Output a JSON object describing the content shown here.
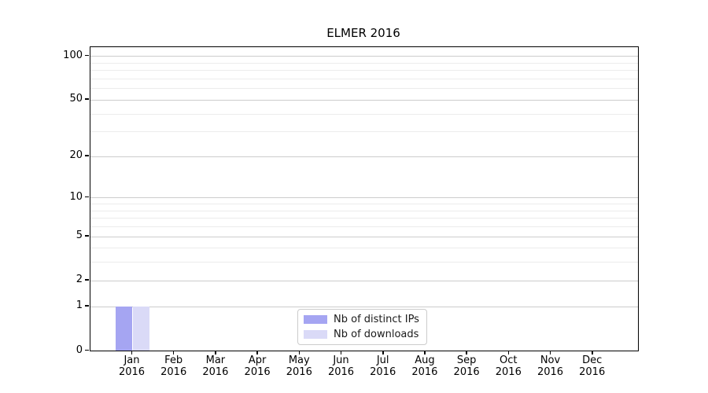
{
  "title": "ELMER 2016",
  "chart_data": {
    "type": "bar",
    "title": "ELMER 2016",
    "xlabel": "",
    "ylabel": "",
    "categories": [
      "Jan 2016",
      "Feb 2016",
      "Mar 2016",
      "Apr 2016",
      "May 2016",
      "Jun 2016",
      "Jul 2016",
      "Aug 2016",
      "Sep 2016",
      "Oct 2016",
      "Nov 2016",
      "Dec 2016"
    ],
    "x_tick_months": [
      "Jan",
      "Feb",
      "Mar",
      "Apr",
      "May",
      "Jun",
      "Jul",
      "Aug",
      "Sep",
      "Oct",
      "Nov",
      "Dec"
    ],
    "x_tick_year": "2016",
    "series": [
      {
        "name": "Nb of distinct IPs",
        "color": "#a5a5f2",
        "values": [
          1,
          0,
          0,
          0,
          0,
          0,
          0,
          0,
          0,
          0,
          0,
          0
        ]
      },
      {
        "name": "Nb of downloads",
        "color": "#dadaf7",
        "values": [
          1,
          0,
          0,
          0,
          0,
          0,
          0,
          0,
          0,
          0,
          0,
          0
        ]
      }
    ],
    "yscale": "log1p",
    "ylim": [
      0,
      113
    ],
    "y_major_ticks": [
      0,
      1,
      2,
      5,
      10,
      20,
      50,
      100
    ],
    "y_minor_gridlines": [
      3,
      4,
      6,
      7,
      8,
      9,
      30,
      40,
      60,
      70,
      80,
      90
    ],
    "grid": true,
    "legend_position": "lower center",
    "colors": {
      "major_grid": "#cccccc",
      "minor_grid": "#ececec",
      "axis": "#000000",
      "background": "#ffffff"
    }
  }
}
